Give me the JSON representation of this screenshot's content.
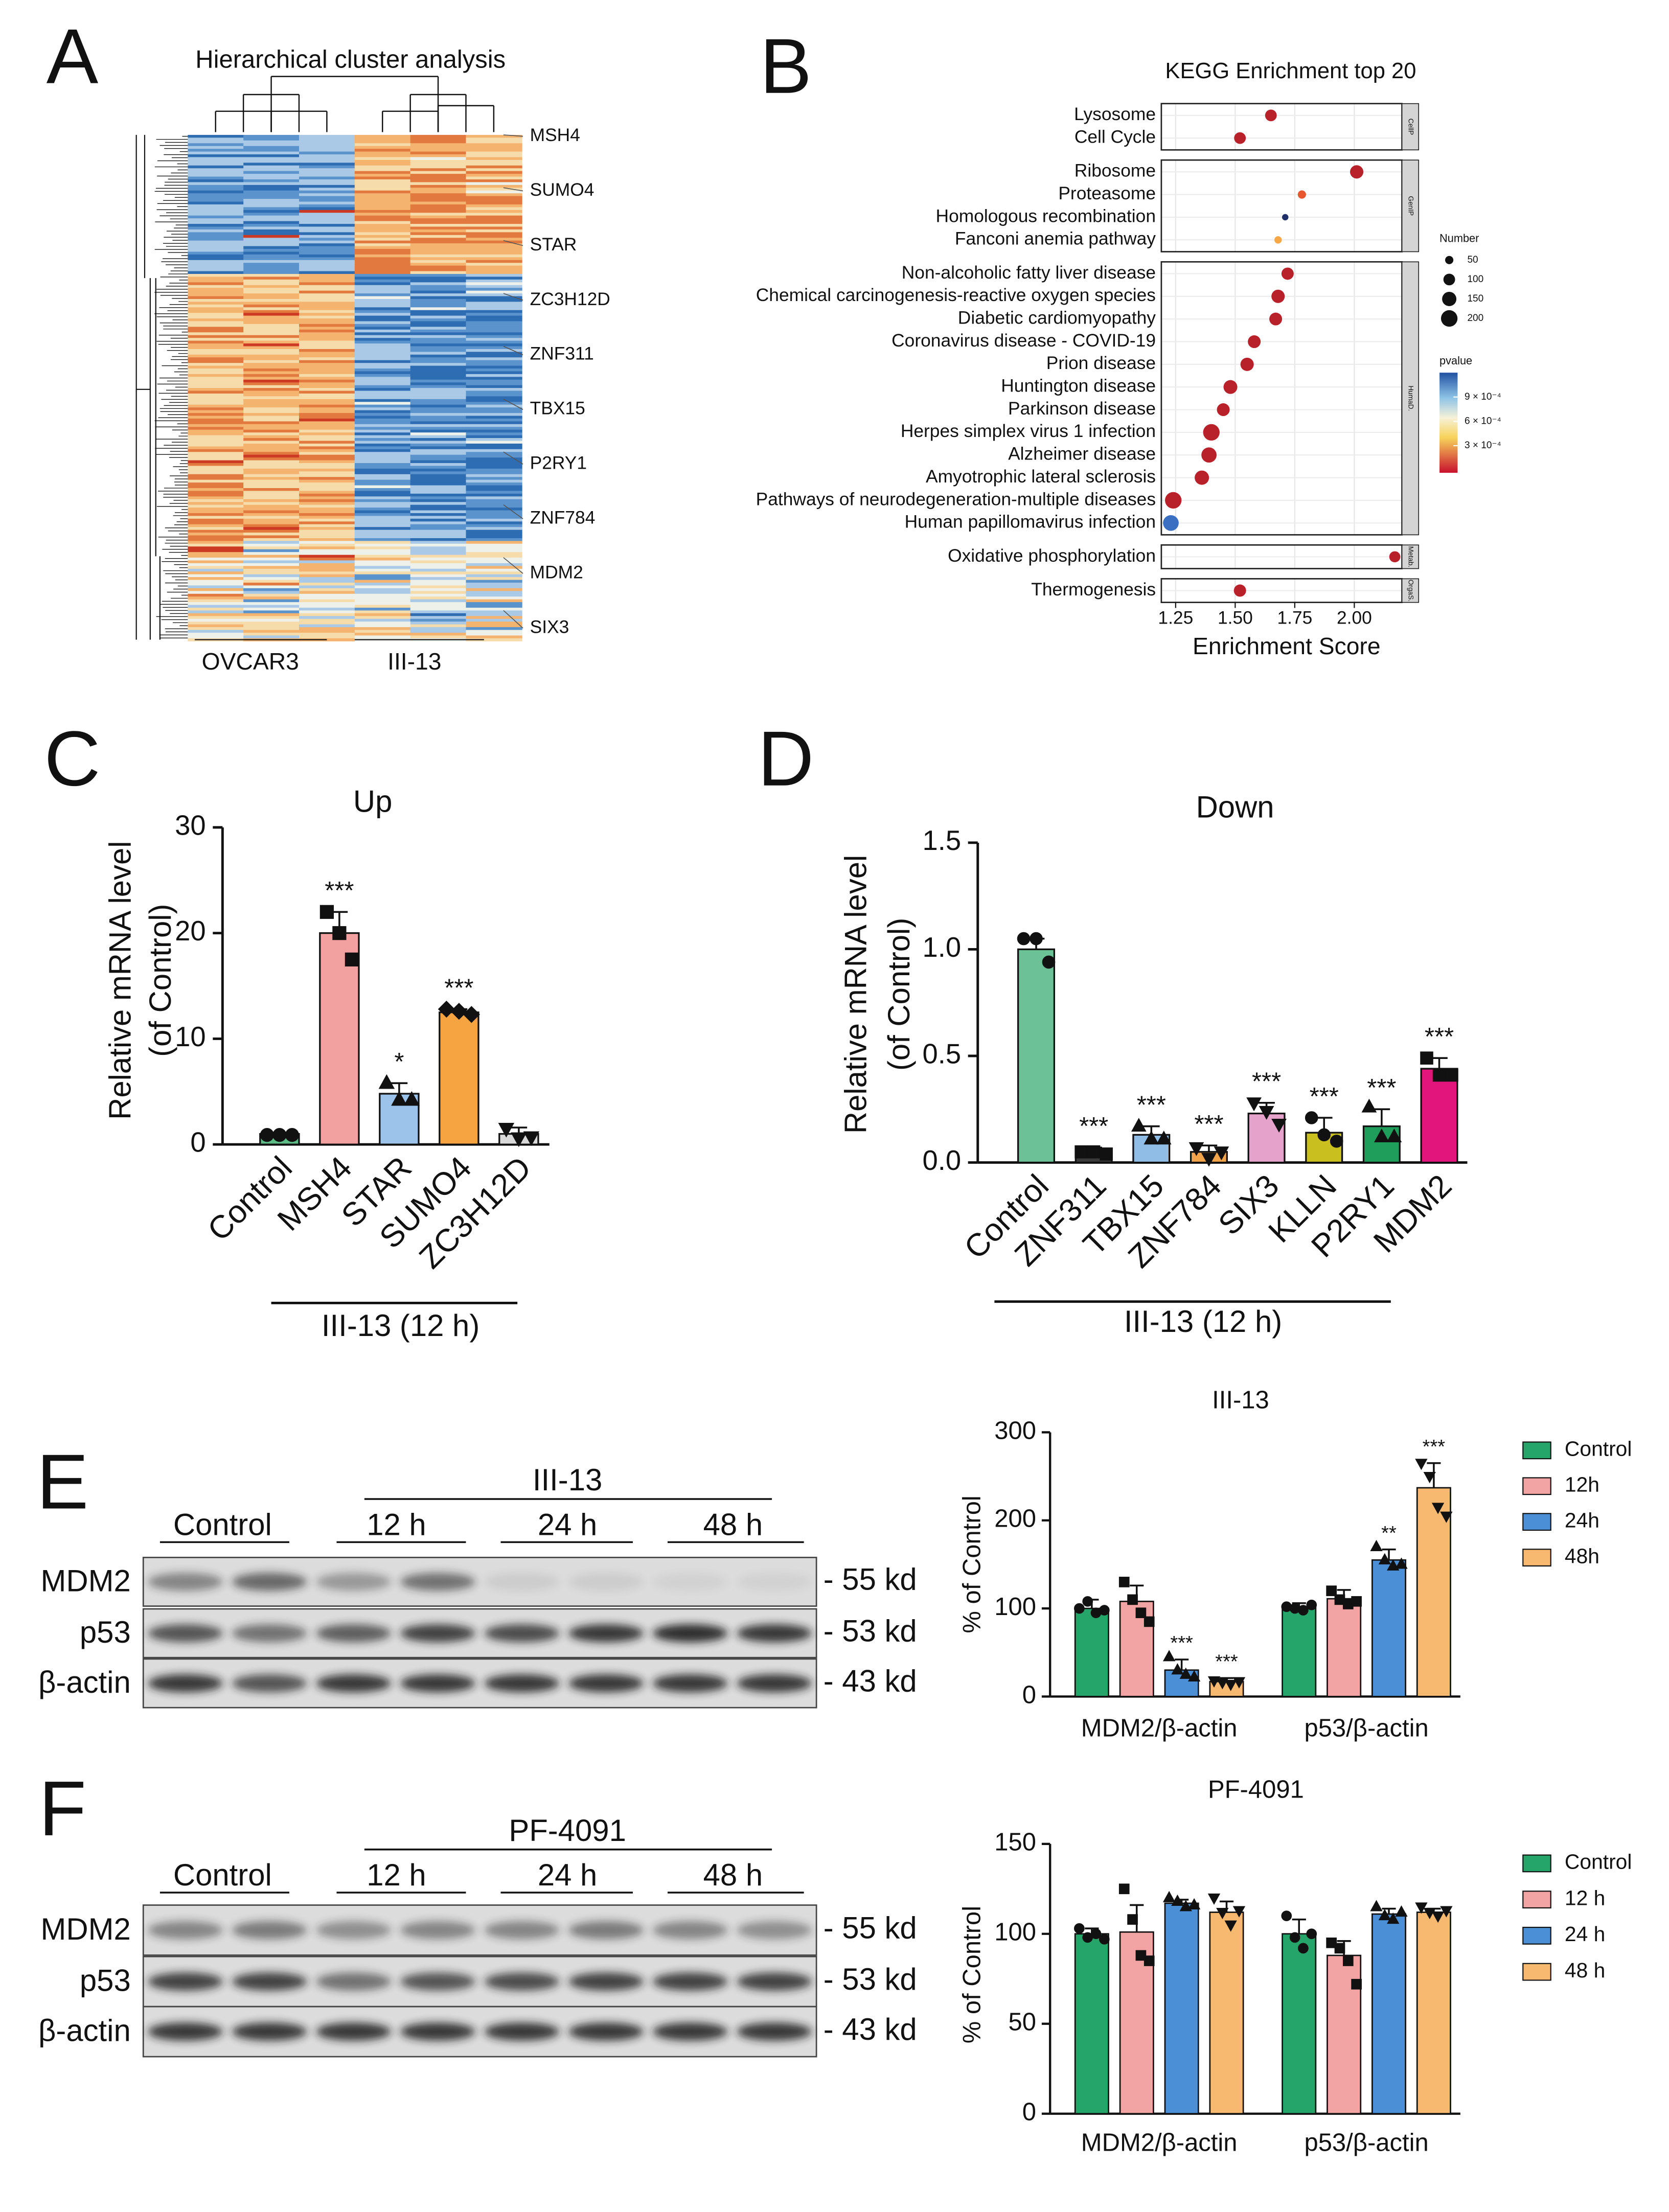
{
  "chart_data": [
    {
      "type": "heatmap",
      "panel": "A",
      "title": "Hierarchical cluster analysis",
      "genes": [
        "MSH4",
        "SUMO4",
        "STAR",
        "ZC3H12D",
        "ZNF311",
        "TBX15",
        "P2RY1",
        "ZNF784",
        "MDM2",
        "SIX3"
      ],
      "groups": [
        "OVCAR3",
        "III-13"
      ]
    },
    {
      "type": "dot",
      "panel": "B",
      "title": "KEGG Enrichment top 20",
      "categories": [
        "Lysosome",
        "Cell Cycle",
        "Ribosome",
        "Proteasome",
        "Homologous recombination",
        "Fanconi anemia pathway",
        "Non-alcoholic fatty liver disease",
        "Chemical carcinogenesis-reactive oxygen species",
        "Diabetic cardiomyopathy",
        "Coronavirus disease - COVID-19",
        "Prion disease",
        "Huntington disease",
        "Parkinson disease",
        "Herpes simplex virus 1 infection",
        "Alzheimer disease",
        "Amyotrophic lateral sclerosis",
        "Pathways of neurodegeneration-multiple diseases",
        "Human papillomavirus infection",
        "Oxidative phosphorylation",
        "Thermogenesis"
      ],
      "facets": [
        "CellP",
        "CellP",
        "GenIP",
        "GenIP",
        "GenIP",
        "GenIP",
        "HumaD.",
        "HumaD.",
        "HumaD.",
        "HumaD.",
        "HumaD.",
        "HumaD.",
        "HumaD.",
        "HumaD.",
        "HumaD.",
        "HumaD.",
        "HumaD.",
        "HumaD.",
        "Metab.",
        "OrgaS."
      ],
      "values": [
        1.65,
        1.52,
        2.01,
        1.78,
        1.71,
        1.68,
        1.72,
        1.68,
        1.67,
        1.58,
        1.55,
        1.48,
        1.45,
        1.4,
        1.39,
        1.36,
        1.24,
        1.23,
        2.17,
        1.52
      ],
      "sizes": [
        100,
        100,
        130,
        50,
        30,
        40,
        110,
        130,
        120,
        120,
        130,
        140,
        120,
        200,
        170,
        150,
        200,
        180,
        90,
        110
      ],
      "colors": [
        "#b8202a",
        "#b8202a",
        "#b8202a",
        "#e8562e",
        "#1f2f6a",
        "#f5a845",
        "#b8202a",
        "#b8202a",
        "#b8202a",
        "#b8202a",
        "#b8202a",
        "#b8202a",
        "#b8202a",
        "#b8202a",
        "#b8202a",
        "#b8202a",
        "#b8202a",
        "#3a6fc2",
        "#b8202a",
        "#b8202a"
      ],
      "xlim": [
        1.19,
        2.2
      ],
      "xticks": [
        {
          "value": 1.25,
          "label": "1.25"
        },
        {
          "value": 1.5,
          "label": "1.50"
        },
        {
          "value": 1.75,
          "label": "1.75"
        },
        {
          "value": 2.0,
          "label": "2.00"
        }
      ],
      "xlabel": "Enrichment Score",
      "size_legend": {
        "title": "Number",
        "values": [
          50,
          100,
          150,
          200
        ]
      },
      "color_legend": {
        "title": "pvalue",
        "ticks": [
          {
            "value": 0.0009,
            "label": "9 × 10⁻⁴"
          },
          {
            "value": 0.0006,
            "label": "6 × 10⁻⁴"
          },
          {
            "value": 0.0003,
            "label": "3 × 10⁻⁴"
          }
        ]
      }
    },
    {
      "type": "bar",
      "panel": "C",
      "title": "Up",
      "ylabel": [
        "Relative mRNA level",
        "(of Control)"
      ],
      "categories": [
        "Control",
        "MSH4",
        "STAR",
        "SUMO4",
        "ZC3H12D"
      ],
      "values": [
        1,
        20,
        4.8,
        12.5,
        1
      ],
      "errors": [
        0.1,
        2,
        1,
        0.3,
        0.6
      ],
      "points": [
        [
          0.9,
          0.9,
          0.9
        ],
        [
          22,
          20,
          17.5
        ],
        [
          5.8,
          4.2,
          4.2
        ],
        [
          12.8,
          12.6,
          12.3
        ],
        [
          1.5,
          0.6,
          0.7
        ]
      ],
      "colors": [
        "#5dbb86",
        "#f2a0a0",
        "#9cc3ea",
        "#f5a441",
        "#d9d9d9"
      ],
      "markers": [
        "circle",
        "square",
        "triangle",
        "diamond",
        "triangle-down"
      ],
      "significance": [
        null,
        "***",
        "*",
        "***",
        null
      ],
      "group_label": "III-13 (12 h)",
      "ylim": [
        0,
        30
      ],
      "yticks": [
        0,
        10,
        20,
        30
      ]
    },
    {
      "type": "bar",
      "panel": "D",
      "title": "Down",
      "ylabel": [
        "Relative mRNA level",
        "(of Control)"
      ],
      "categories": [
        "Control",
        "ZNF311",
        "TBX15",
        "ZNF784",
        "SIX3",
        "KLLN",
        "P2RY1",
        "MDM2"
      ],
      "values": [
        1.0,
        0.05,
        0.13,
        0.05,
        0.23,
        0.14,
        0.17,
        0.44
      ],
      "errors": [
        0.05,
        0.02,
        0.04,
        0.03,
        0.05,
        0.07,
        0.08,
        0.05
      ],
      "points": [
        [
          1.05,
          1.05,
          0.94
        ],
        [
          0.05,
          0.05,
          0.04
        ],
        [
          0.17,
          0.11,
          0.11
        ],
        [
          0.07,
          0.02,
          0.05
        ],
        [
          0.28,
          0.24,
          0.18
        ],
        [
          0.21,
          0.13,
          0.1
        ],
        [
          0.26,
          0.12,
          0.12
        ],
        [
          0.49,
          0.41,
          0.41
        ]
      ],
      "colors": [
        "#6cc196",
        "#3a3a3a",
        "#8fbde6",
        "#f2a44a",
        "#e5a3cb",
        "#c9bf1e",
        "#1f9e5b",
        "#e2157c"
      ],
      "markers": [
        "circle",
        "square",
        "triangle",
        "triangle-down",
        "triangle-down",
        "circle",
        "triangle",
        "square"
      ],
      "significance": [
        null,
        "***",
        "***",
        "***",
        "***",
        "***",
        "***",
        "***"
      ],
      "group_label": "III-13 (12 h)",
      "ylim": [
        0,
        1.5
      ],
      "yticks": [
        {
          "value": 0,
          "label": "0.0"
        },
        {
          "value": 0.5,
          "label": "0.5"
        },
        {
          "value": 1,
          "label": "1.0"
        },
        {
          "value": 1.5,
          "label": "1.5"
        }
      ]
    },
    {
      "type": "blot",
      "panel": "E",
      "control": "Control",
      "treatment": "III-13",
      "times": [
        "12 h",
        "24 h",
        "48 h"
      ],
      "proteins": [
        "MDM2",
        "p53",
        "β-actin"
      ],
      "sizes": [
        "- 55 kd",
        "- 53 kd",
        "- 43 kd"
      ]
    },
    {
      "type": "grouped_bar",
      "title": "III-13",
      "ylabel": "% of Control",
      "categories": [
        "MDM2/β-actin",
        "p53/β-actin"
      ],
      "ylim": [
        0,
        300
      ],
      "yticks": [
        0,
        100,
        200,
        300
      ],
      "series": [
        {
          "name": "Control",
          "color": "#25a56a",
          "marker": "circle",
          "values": [
            100,
            101
          ],
          "errors": [
            10,
            5
          ],
          "points": [
            [
              100,
              108,
              95,
              98
            ],
            [
              102,
              100,
              98,
              104
            ]
          ],
          "significance": [
            null,
            null
          ]
        },
        {
          "name": "12h",
          "color": "#f2a3a3",
          "marker": "square",
          "values": [
            108,
            111
          ],
          "errors": [
            18,
            10
          ],
          "points": [
            [
              130,
              110,
              95,
              85
            ],
            [
              120,
              110,
              105,
              108
            ]
          ],
          "significance": [
            null,
            null
          ]
        },
        {
          "name": "24h",
          "color": "#4b8fd6",
          "marker": "triangle",
          "values": [
            30,
            155
          ],
          "errors": [
            12,
            12
          ],
          "points": [
            [
              45,
              30,
              25,
              22
            ],
            [
              170,
              155,
              148,
              150
            ]
          ],
          "significance": [
            "***",
            "**"
          ]
        },
        {
          "name": "48h",
          "color": "#f7b96f",
          "marker": "triangle-down",
          "values": [
            17,
            237
          ],
          "errors": [
            4,
            28
          ],
          "points": [
            [
              18,
              16,
              14,
              17
            ],
            [
              265,
              250,
              215,
              205
            ]
          ],
          "significance": [
            "***",
            "***"
          ]
        }
      ]
    },
    {
      "type": "blot",
      "panel": "F",
      "control": "Control",
      "treatment": "PF-4091",
      "times": [
        "12 h",
        "24 h",
        "48 h"
      ],
      "proteins": [
        "MDM2",
        "p53",
        "β-actin"
      ],
      "sizes": [
        "- 55 kd",
        "- 53 kd",
        "- 43 kd"
      ]
    },
    {
      "type": "grouped_bar",
      "title": "PF-4091",
      "ylabel": "% of Control",
      "categories": [
        "MDM2/β-actin",
        "p53/β-actin"
      ],
      "ylim": [
        0,
        150
      ],
      "yticks": [
        0,
        50,
        100,
        150
      ],
      "series": [
        {
          "name": "Control",
          "color": "#25a56a",
          "marker": "circle",
          "values": [
            100,
            100
          ],
          "errors": [
            3,
            8
          ],
          "points": [
            [
              103,
              98,
              100,
              97
            ],
            [
              110,
              98,
              92,
              100
            ]
          ],
          "significance": [
            null,
            null
          ]
        },
        {
          "name": "12 h",
          "color": "#f2a3a3",
          "marker": "square",
          "values": [
            101,
            88
          ],
          "errors": [
            15,
            8
          ],
          "points": [
            [
              125,
              108,
              88,
              85
            ],
            [
              95,
              92,
              85,
              72
            ]
          ],
          "significance": [
            null,
            null
          ]
        },
        {
          "name": "24 h",
          "color": "#4b8fd6",
          "marker": "triangle",
          "values": [
            117,
            111
          ],
          "errors": [
            2,
            3
          ],
          "points": [
            [
              120,
              118,
              115,
              116
            ],
            [
              115,
              110,
              108,
              112
            ]
          ],
          "significance": [
            null,
            null
          ]
        },
        {
          "name": "48 h",
          "color": "#f7b96f",
          "marker": "triangle-down",
          "values": [
            112,
            112
          ],
          "errors": [
            6,
            2
          ],
          "points": [
            [
              120,
              112,
              105,
              113
            ],
            [
              115,
              112,
              110,
              113
            ]
          ],
          "significance": [
            null,
            null
          ]
        }
      ]
    }
  ]
}
